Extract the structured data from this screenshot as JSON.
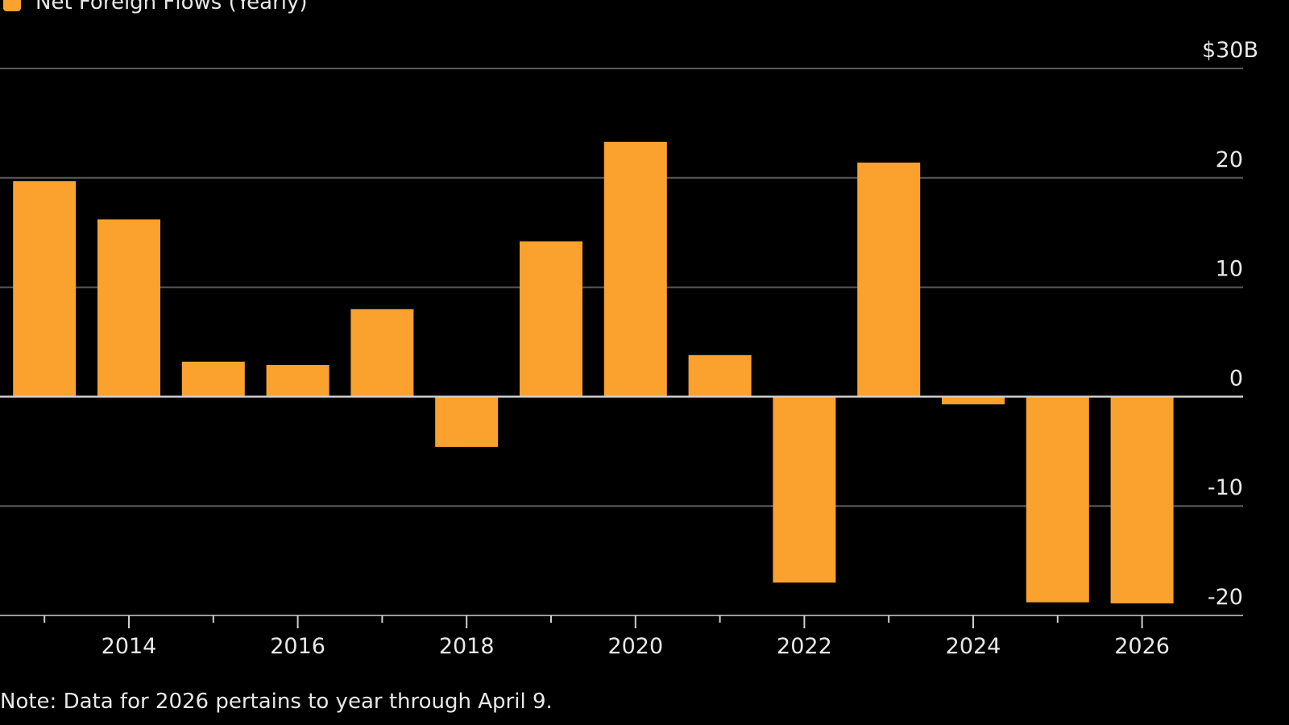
{
  "chart_data": {
    "type": "bar",
    "title": "",
    "legend": [
      {
        "name": "Net Foreign Flows (Yearly)",
        "color": "#fba12e"
      }
    ],
    "legend_position": "top-left",
    "categories": [
      "2013",
      "2014",
      "2015",
      "2016",
      "2017",
      "2018",
      "2019",
      "2020",
      "2021",
      "2022",
      "2023",
      "2024",
      "2025",
      "2026"
    ],
    "series": [
      {
        "name": "Net Foreign Flows (Yearly)",
        "values": [
          19.7,
          16.2,
          3.2,
          2.9,
          8.0,
          -4.6,
          14.2,
          23.3,
          3.8,
          -17.0,
          21.4,
          -0.7,
          -18.8,
          -18.9
        ]
      }
    ],
    "xlabel": "",
    "ylabel": "",
    "ylim": [
      -20,
      30
    ],
    "y_ticks": [
      {
        "value": 30,
        "label": "$30B"
      },
      {
        "value": 20,
        "label": "20"
      },
      {
        "value": 10,
        "label": "10"
      },
      {
        "value": 0,
        "label": "0"
      },
      {
        "value": -10,
        "label": "-10"
      },
      {
        "value": -20,
        "label": "-20"
      }
    ],
    "y_axis_position": "right",
    "x_tick_labels": [
      "2014",
      "2016",
      "2018",
      "2020",
      "2022",
      "2024",
      "2026"
    ],
    "grid": true,
    "note": "Note: Data for 2026 pertains to year through April 9."
  },
  "colors": {
    "bar": "#fba12e",
    "background": "#000000",
    "grid": "#5a5a5a",
    "zero": "#cfcfcf",
    "text": "#e8e8e8"
  }
}
